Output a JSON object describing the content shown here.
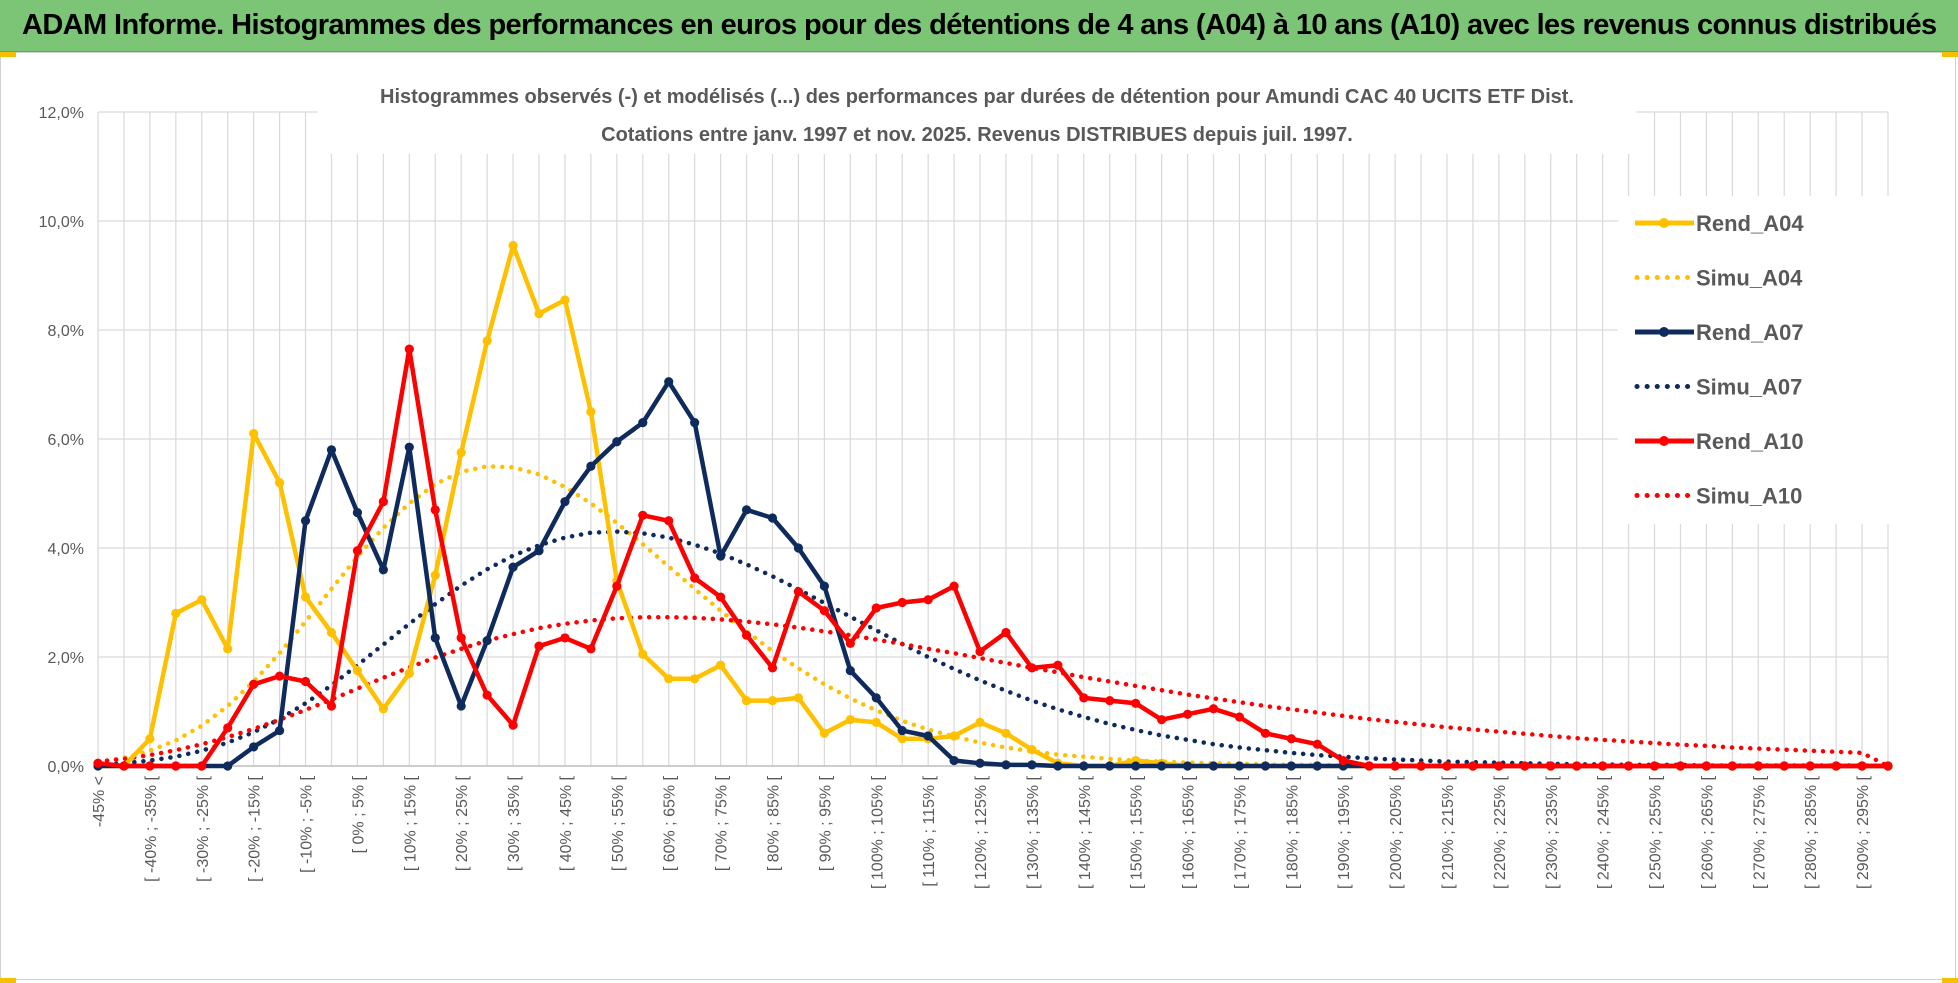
{
  "header": {
    "title": "ADAM Informe. Histogrammes des performances en euros pour des détentions de 4 ans (A04) à 10 ans (A10) avec les revenus connus distribués"
  },
  "chart_data": {
    "type": "line",
    "title": "Histogrammes observés (-) et modélisés (...) des performances par durées de détention pour Amundi CAC 40 UCITS ETF Dist.",
    "subtitle": "Cotations entre janv. 1997 et nov. 2025. Revenus DISTRIBUES depuis juil. 1997.",
    "y_ticks": [
      "0,0%",
      "2,0%",
      "4,0%",
      "6,0%",
      "8,0%",
      "10,0%",
      "12,0%"
    ],
    "ylim": [
      0,
      12
    ],
    "grid": true,
    "legend_position": "right",
    "categories": [
      "-45% <",
      "[ -45% ; -40% [",
      "[ -40% ; -35% [",
      "[ -35% ; -30% [",
      "[ -30% ; -25% [",
      "[ -25% ; -20% [",
      "[ -20% ; -15% [",
      "[ -15% ; -10% [",
      "[ -10% ; -5% [",
      "[ -5% ; 0% [",
      "[ 0% ; 5% [",
      "[ 5% ; 10% [",
      "[ 10% ; 15% [",
      "[ 15% ; 20% [",
      "[ 20% ; 25% [",
      "[ 25% ; 30% [",
      "[ 30% ; 35% [",
      "[ 35% ; 40% [",
      "[ 40% ; 45% [",
      "[ 45% ; 50% [",
      "[ 50% ; 55% [",
      "[ 55% ; 60% [",
      "[ 60% ; 65% [",
      "[ 65% ; 70% [",
      "[ 70% ; 75% [",
      "[ 75% ; 80% [",
      "[ 80% ; 85% [",
      "[ 85% ; 90% [",
      "[ 90% ; 95% [",
      "[ 95% ; 100% [",
      "[ 100% ; 105% [",
      "[ 105% ; 110% [",
      "[ 110% ; 115% [",
      "[ 115% ; 120% [",
      "[ 120% ; 125% [",
      "[ 125% ; 130% [",
      "[ 130% ; 135% [",
      "[ 135% ; 140% [",
      "[ 140% ; 145% [",
      "[ 145% ; 150% [",
      "[ 150% ; 155% [",
      "[ 155% ; 160% [",
      "[ 160% ; 165% [",
      "[ 165% ; 170% [",
      "[ 170% ; 175% [",
      "[ 175% ; 180% [",
      "[ 180% ; 185% [",
      "[ 185% ; 190% [",
      "[ 190% ; 195% [",
      "[ 195% ; 200% [",
      "[ 200% ; 205% [",
      "[ 205% ; 210% [",
      "[ 210% ; 215% [",
      "[ 215% ; 220% [",
      "[ 220% ; 225% [",
      "[ 225% ; 230% [",
      "[ 230% ; 235% [",
      "[ 235% ; 240% [",
      "[ 240% ; 245% [",
      "[ 245% ; 250% [",
      "[ 250% ; 255% [",
      "[ 255% ; 260% [",
      "[ 260% ; 265% [",
      "[ 265% ; 270% [",
      "[ 270% ; 275% [",
      "[ 275% ; 280% [",
      "[ 280% ; 285% [",
      "[ 285% ; 290% [",
      "[ 290% ; 295% [",
      "[ 295% ; 300% ["
    ],
    "tick_labels": [
      "-45% <",
      "",
      "[ -40% ; -35% [",
      "",
      "[ -30% ; -25% [",
      "",
      "[ -20% ; -15% [",
      "",
      "[ -10% ; -5% [",
      "",
      "[ 0% ; 5% [",
      "",
      "[ 10% ; 15% [",
      "",
      "[ 20% ; 25% [",
      "",
      "[ 30% ; 35% [",
      "",
      "[ 40% ; 45% [",
      "",
      "[ 50% ; 55% [",
      "",
      "[ 60% ; 65% [",
      "",
      "[ 70% ; 75% [",
      "",
      "[ 80% ; 85% [",
      "",
      "[ 90% ; 95% [",
      "",
      "[ 100% ; 105% [",
      "",
      "[ 110% ; 115% [",
      "",
      "[ 120% ; 125% [",
      "",
      "[ 130% ; 135% [",
      "",
      "[ 140% ; 145% [",
      "",
      "[ 150% ; 155% [",
      "",
      "[ 160% ; 165% [",
      "",
      "[ 170% ; 175% [",
      "",
      "[ 180% ; 185% [",
      "",
      "[ 190% ; 195% [",
      "",
      "[ 200% ; 205% [",
      "",
      "[ 210% ; 215% [",
      "",
      "[ 220% ; 225% [",
      "",
      "[ 230% ; 235% [",
      "",
      "[ 240% ; 245% [",
      "",
      "[ 250% ; 255% [",
      "",
      "[ 260% ; 265% [",
      "",
      "[ 270% ; 275% [",
      "",
      "[ 280% ; 285% [",
      "",
      "[ 290% ; 295% [",
      ""
    ],
    "series": [
      {
        "name": "Rend_A04",
        "style": "solid",
        "color": "#ffc000",
        "values": [
          0,
          0,
          0.5,
          2.8,
          3.05,
          2.15,
          6.1,
          5.2,
          3.1,
          2.45,
          1.75,
          1.05,
          1.7,
          3.5,
          5.75,
          7.8,
          9.55,
          8.3,
          8.55,
          6.5,
          3.4,
          2.05,
          1.6,
          1.6,
          1.85,
          1.2,
          1.2,
          1.25,
          0.6,
          0.85,
          0.8,
          0.5,
          0.5,
          0.55,
          0.8,
          0.6,
          0.3,
          0.05,
          0,
          0,
          0.1,
          0.05,
          0,
          0,
          0,
          0,
          0,
          0,
          0,
          0,
          0,
          0,
          0,
          0,
          0,
          0,
          0,
          0,
          0,
          0,
          0,
          0,
          0,
          0,
          0,
          0,
          0,
          0,
          0,
          0
        ]
      },
      {
        "name": "Simu_A04",
        "style": "dotted",
        "color": "#ffc000",
        "values": [
          0.07,
          0.15,
          0.28,
          0.47,
          0.74,
          1.1,
          1.55,
          2.07,
          2.65,
          3.25,
          3.84,
          4.37,
          4.82,
          5.17,
          5.4,
          5.5,
          5.48,
          5.35,
          5.12,
          4.82,
          4.46,
          4.07,
          3.66,
          3.25,
          2.85,
          2.47,
          2.11,
          1.79,
          1.5,
          1.24,
          1.02,
          0.83,
          0.67,
          0.54,
          0.43,
          0.34,
          0.27,
          0.21,
          0.17,
          0.13,
          0.1,
          0.08,
          0.06,
          0.05,
          0.04,
          0.03,
          0.02,
          0.02,
          0.01,
          0.01,
          0.01,
          0.01,
          0,
          0,
          0,
          0,
          0,
          0,
          0,
          0,
          0,
          0,
          0,
          0,
          0,
          0,
          0,
          0,
          0,
          0
        ]
      },
      {
        "name": "Rend_A07",
        "style": "solid",
        "color": "#0f2a5c",
        "values": [
          0,
          0,
          0,
          0,
          0,
          0,
          0.35,
          0.65,
          4.5,
          5.8,
          4.65,
          3.6,
          5.85,
          2.35,
          1.1,
          2.3,
          3.65,
          3.95,
          4.85,
          5.5,
          5.95,
          6.3,
          7.05,
          6.3,
          3.85,
          4.7,
          4.55,
          4.0,
          3.3,
          1.75,
          1.25,
          0.65,
          0.55,
          0.1,
          0.05,
          0.02,
          0.02,
          0,
          0,
          0,
          0,
          0,
          0,
          0,
          0,
          0,
          0,
          0,
          0,
          0,
          0,
          0,
          0,
          0,
          0,
          0,
          0,
          0,
          0,
          0,
          0,
          0,
          0,
          0,
          0,
          0,
          0,
          0,
          0,
          0
        ]
      },
      {
        "name": "Simu_A07",
        "style": "dotted",
        "color": "#0f2a5c",
        "values": [
          0.02,
          0.05,
          0.1,
          0.17,
          0.28,
          0.43,
          0.62,
          0.86,
          1.15,
          1.48,
          1.85,
          2.23,
          2.61,
          2.97,
          3.31,
          3.61,
          3.86,
          4.05,
          4.19,
          4.28,
          4.3,
          4.27,
          4.19,
          4.06,
          3.9,
          3.7,
          3.48,
          3.24,
          2.99,
          2.74,
          2.49,
          2.24,
          2.0,
          1.78,
          1.57,
          1.38,
          1.2,
          1.04,
          0.9,
          0.77,
          0.66,
          0.56,
          0.48,
          0.4,
          0.34,
          0.29,
          0.24,
          0.2,
          0.17,
          0.14,
          0.12,
          0.1,
          0.08,
          0.07,
          0.06,
          0.05,
          0.04,
          0.03,
          0.03,
          0.02,
          0.02,
          0.02,
          0.01,
          0.01,
          0.01,
          0.01,
          0.01,
          0.01,
          0.01,
          0
        ]
      },
      {
        "name": "Rend_A10",
        "style": "solid",
        "color": "#ff0000",
        "values": [
          0.05,
          0,
          0,
          0,
          0,
          0.7,
          1.5,
          1.65,
          1.55,
          1.1,
          3.95,
          4.85,
          7.65,
          4.7,
          2.35,
          1.3,
          0.75,
          2.2,
          2.35,
          2.15,
          3.3,
          4.6,
          4.5,
          3.45,
          3.1,
          2.4,
          1.8,
          3.2,
          2.85,
          2.25,
          2.9,
          3.0,
          3.05,
          3.3,
          2.1,
          2.45,
          1.8,
          1.85,
          1.25,
          1.2,
          1.15,
          0.85,
          0.95,
          1.05,
          0.9,
          0.6,
          0.5,
          0.4,
          0.1,
          0,
          0,
          0,
          0,
          0,
          0,
          0,
          0,
          0,
          0,
          0,
          0,
          0,
          0,
          0,
          0,
          0,
          0,
          0,
          0,
          0
        ]
      },
      {
        "name": "Simu_A10",
        "style": "dotted",
        "color": "#ff0000",
        "values": [
          0.08,
          0.13,
          0.2,
          0.29,
          0.4,
          0.53,
          0.68,
          0.85,
          1.03,
          1.22,
          1.42,
          1.62,
          1.81,
          1.99,
          2.15,
          2.3,
          2.42,
          2.53,
          2.61,
          2.67,
          2.71,
          2.73,
          2.73,
          2.72,
          2.69,
          2.65,
          2.6,
          2.54,
          2.47,
          2.4,
          2.32,
          2.24,
          2.15,
          2.07,
          1.98,
          1.89,
          1.8,
          1.72,
          1.63,
          1.55,
          1.47,
          1.39,
          1.31,
          1.24,
          1.17,
          1.1,
          1.04,
          0.98,
          0.92,
          0.86,
          0.81,
          0.76,
          0.71,
          0.67,
          0.63,
          0.59,
          0.55,
          0.51,
          0.48,
          0.45,
          0.42,
          0.39,
          0.37,
          0.34,
          0.32,
          0.3,
          0.28,
          0.26,
          0.24,
          0
        ]
      }
    ]
  }
}
